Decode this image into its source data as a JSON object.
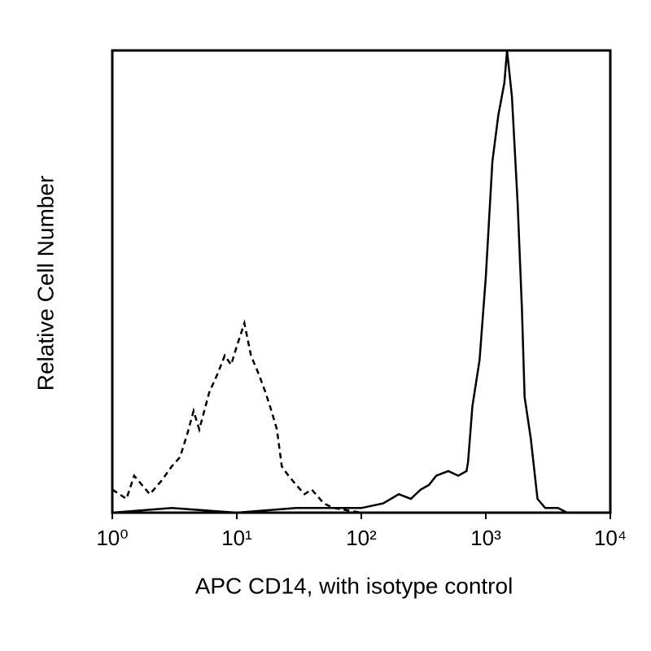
{
  "chart_data": {
    "type": "line",
    "xlabel": "APC CD14, with isotype control",
    "ylabel": "Relative Cell Number",
    "xscale": "log",
    "xlim": [
      1,
      10000
    ],
    "ylim": [
      0,
      100
    ],
    "xticks": [
      {
        "value": 1,
        "label": "10⁰"
      },
      {
        "value": 10,
        "label": "10¹"
      },
      {
        "value": 100,
        "label": "10²"
      },
      {
        "value": 1000,
        "label": "10³"
      },
      {
        "value": 10000,
        "label": "10⁴"
      }
    ],
    "series": [
      {
        "color": "#000000",
        "dash": true,
        "x": [
          1,
          1.3,
          1.5,
          2,
          2.5,
          3,
          3.5,
          4,
          4.5,
          5,
          6,
          7,
          8,
          9,
          10,
          11.5,
          13,
          15,
          17,
          19,
          21,
          23,
          26,
          30,
          35,
          40,
          50,
          60,
          100,
          200
        ],
        "values": [
          5,
          3,
          8,
          4,
          7,
          10,
          12,
          17,
          22,
          18,
          26,
          30,
          34,
          32,
          36,
          41,
          34,
          30,
          26,
          22,
          18,
          10,
          8,
          6,
          4,
          5,
          2,
          1,
          0,
          0
        ]
      },
      {
        "color": "#000000",
        "dash": false,
        "x": [
          1,
          3,
          10,
          30,
          100,
          150,
          200,
          250,
          300,
          350,
          400,
          500,
          600,
          700,
          720,
          780,
          890,
          1000,
          1130,
          1260,
          1410,
          1480,
          1620,
          1800,
          1950,
          2050,
          2300,
          2600,
          3000,
          3800,
          4500
        ],
        "values": [
          0,
          1,
          0,
          1,
          1,
          2,
          4,
          3,
          5,
          6,
          8,
          9,
          8,
          9,
          11,
          23,
          33,
          51,
          76,
          86,
          93,
          100,
          90,
          67,
          44,
          25,
          16,
          3,
          1,
          1,
          0
        ]
      }
    ]
  }
}
